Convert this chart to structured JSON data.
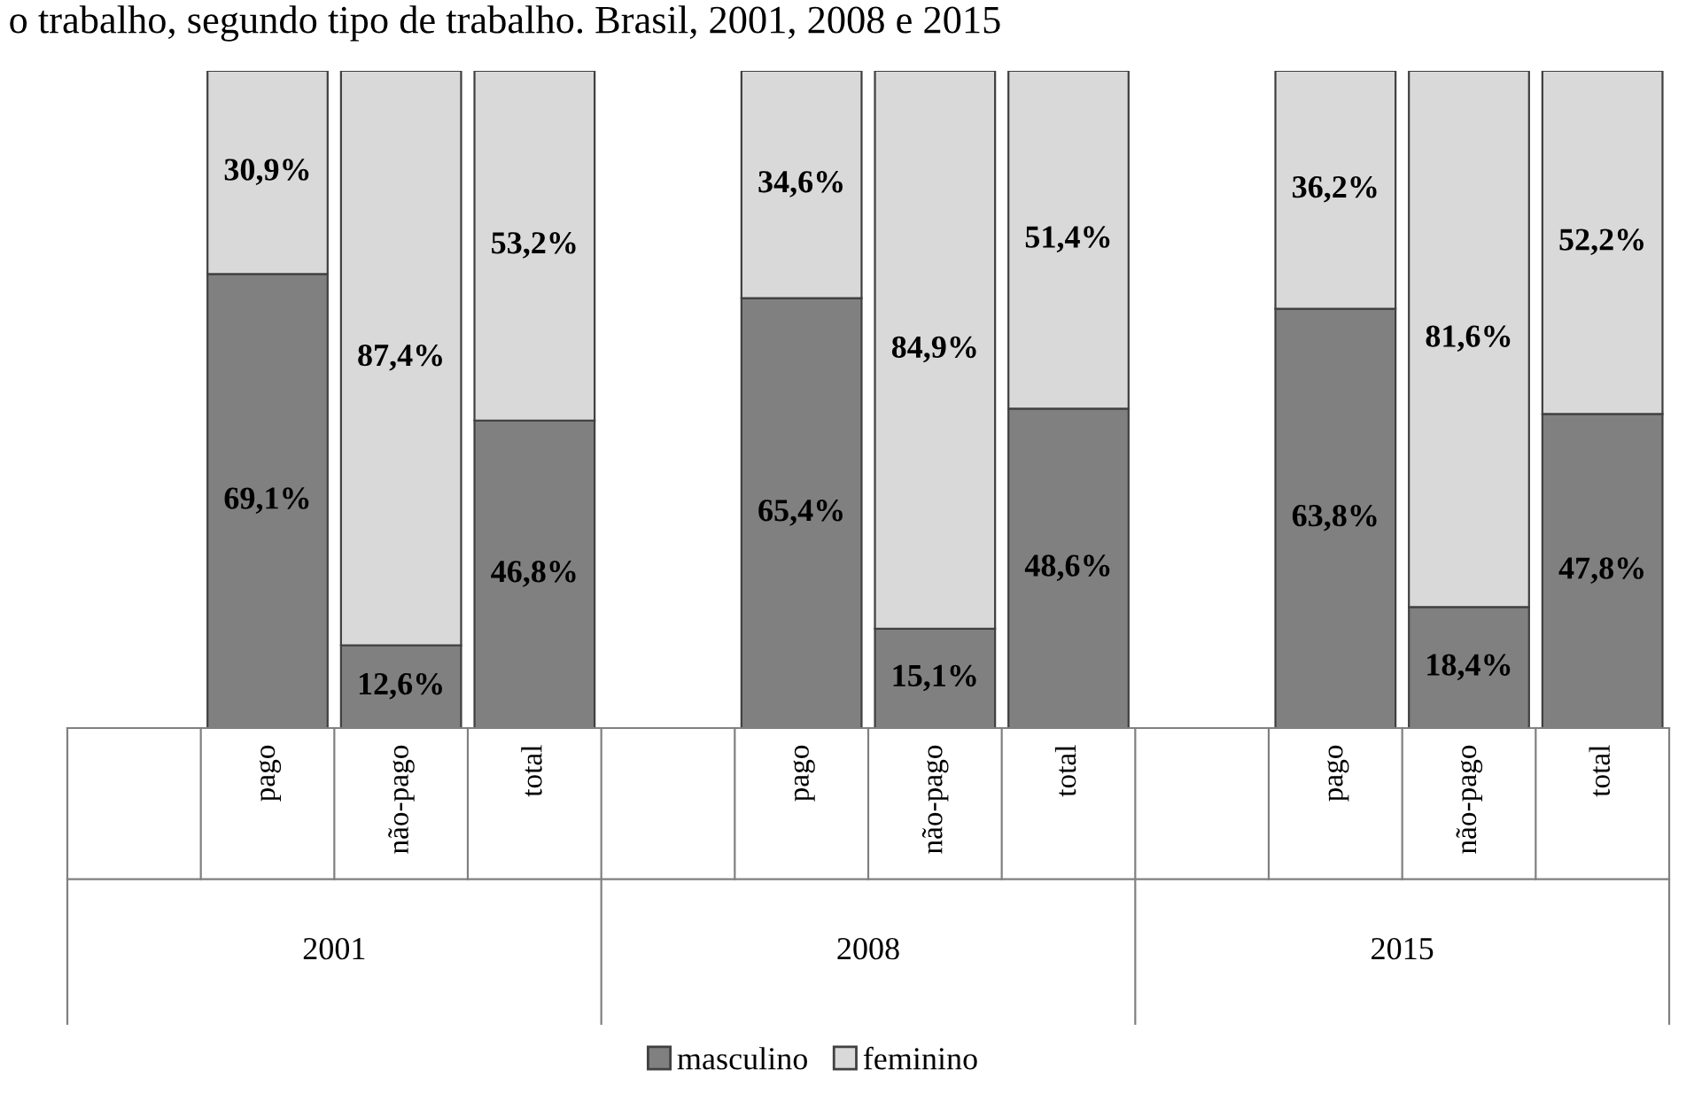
{
  "chart_data": {
    "type": "bar",
    "stacked": true,
    "title": "o trabalho, segundo tipo de trabalho. Brasil, 2001, 2008 e 2015",
    "categories": [
      null,
      "pago",
      "não-pago",
      "total",
      null,
      "pago",
      "não-pago",
      "total",
      null,
      "pago",
      "não-pago",
      "total"
    ],
    "annotations": [
      "2001",
      "2008",
      "2015"
    ],
    "series": [
      {
        "name": "masculino",
        "color": "#808080",
        "values": [
          null,
          69.1,
          12.6,
          46.8,
          null,
          65.4,
          15.1,
          48.6,
          null,
          63.8,
          18.4,
          47.8
        ],
        "value_labels": [
          null,
          "69,1%",
          "12,6%",
          "46,8%",
          null,
          "65,4%",
          "15,1%",
          "48,6%",
          null,
          "63,8%",
          "18,4%",
          "47,8%"
        ]
      },
      {
        "name": "feminino",
        "color": "#d9d9d9",
        "values": [
          null,
          30.9,
          87.4,
          53.2,
          null,
          34.6,
          84.9,
          51.4,
          null,
          36.2,
          81.6,
          52.2
        ],
        "value_labels": [
          null,
          "30,9%",
          "87,4%",
          "53,2%",
          null,
          "34,6%",
          "84,9%",
          "51,4%",
          null,
          "36,2%",
          "81,6%",
          "52,2%"
        ]
      }
    ],
    "legend": "bottom"
  }
}
